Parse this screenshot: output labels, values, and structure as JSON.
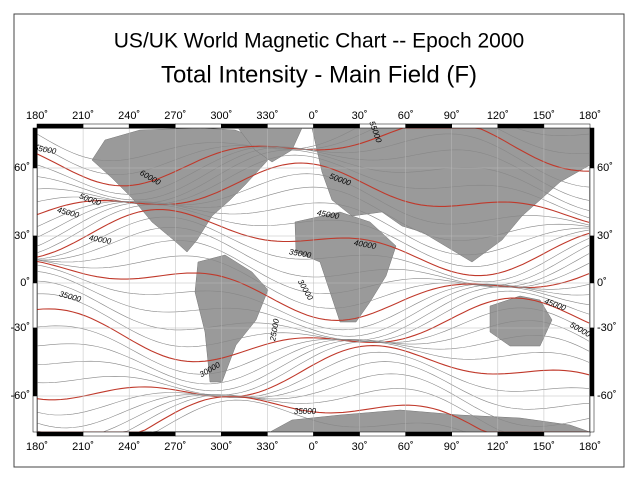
{
  "header": {
    "title": "US/UK World Magnetic Chart  --  Epoch 2000",
    "subtitle": "Total Intensity - Main Field (F)"
  },
  "map": {
    "top_longitudes": [
      "180˚",
      "210˚",
      "240˚",
      "270˚",
      "300˚",
      "330˚",
      "0˚",
      "30˚",
      "60˚",
      "90˚",
      "120˚",
      "150˚",
      "180˚"
    ],
    "bottom_longitudes": [
      "180˚",
      "210˚",
      "240˚",
      "270˚",
      "300˚",
      "330˚",
      "0˚",
      "30˚",
      "60˚",
      "90˚",
      "120˚",
      "150˚",
      "180˚"
    ],
    "left_latitudes": [
      "60˚",
      "30˚",
      "0˚",
      "-30˚",
      "-60˚"
    ],
    "right_latitudes": [
      "60˚",
      "30˚",
      "0˚",
      "-30˚",
      "-60˚"
    ],
    "contour_labels": [
      "55000",
      "60000",
      "50000",
      "45000",
      "40000",
      "35000",
      "30000",
      "25000",
      "35000",
      "30000",
      "35000",
      "40000",
      "45000",
      "50000",
      "55000",
      "45000",
      "50000"
    ]
  }
}
